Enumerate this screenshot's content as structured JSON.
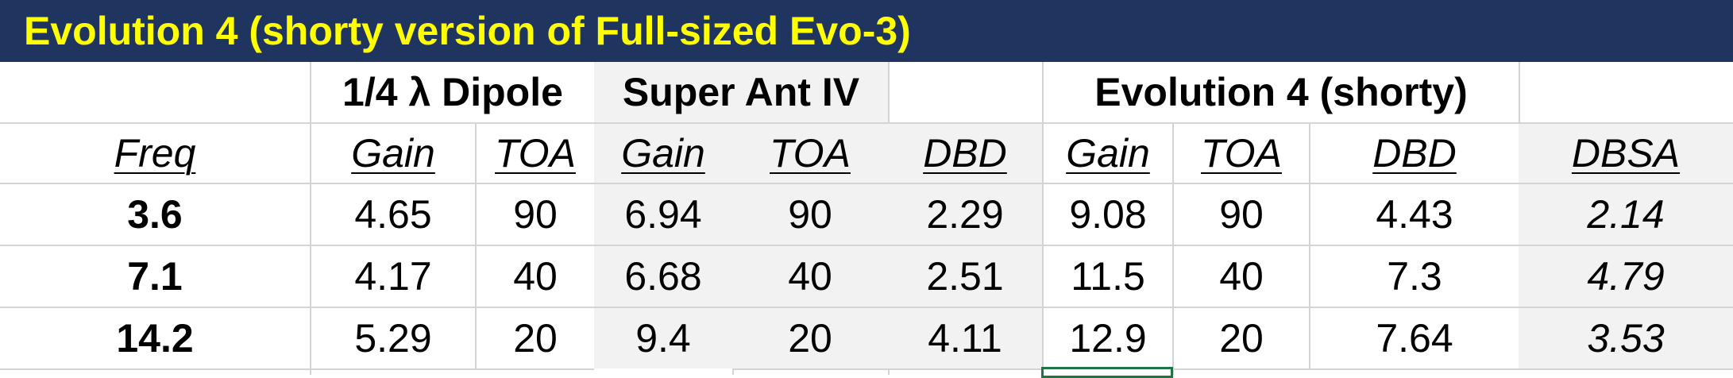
{
  "title": "Evolution 4 (shorty version of Full-sized Evo-3)",
  "groups": {
    "dipole": "1/4 λ Dipole",
    "super_ant": "Super Ant IV",
    "evo4": "Evolution 4 (shorty)"
  },
  "headers": {
    "freq": "Freq",
    "dipole_gain": "Gain",
    "dipole_toa": "TOA",
    "sa_gain": "Gain",
    "sa_toa": "TOA",
    "sa_dbd": "DBD",
    "evo_gain": "Gain",
    "evo_toa": "TOA",
    "evo_dbd": "DBD",
    "dbsa": "DBSA"
  },
  "rows": [
    [
      "3.6",
      "4.65",
      "90",
      "6.94",
      "90",
      "2.29",
      "9.08",
      "90",
      "4.43",
      "2.14"
    ],
    [
      "7.1",
      "4.17",
      "40",
      "6.68",
      "40",
      "2.51",
      "11.5",
      "40",
      "7.3",
      "4.79"
    ],
    [
      "14.2",
      "5.29",
      "20",
      "9.4",
      "20",
      "4.11",
      "12.9",
      "20",
      "7.64",
      "3.53"
    ]
  ]
}
